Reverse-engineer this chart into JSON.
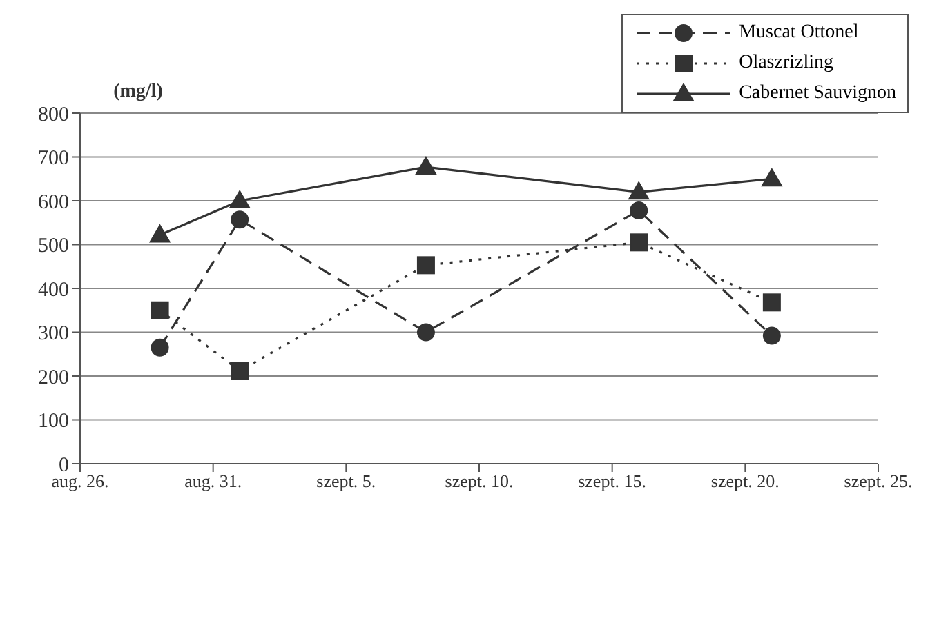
{
  "chart_data": {
    "type": "line",
    "ylabel": "(mg/l)",
    "x": [
      "--08-29",
      "--09-01",
      "--09-08",
      "--09-16",
      "--09-21"
    ],
    "series": [
      {
        "name": "Muscat Ottonel",
        "color": "#333333",
        "marker": "circle",
        "line_style": "dashed",
        "values": [
          265,
          557,
          300,
          578,
          292
        ]
      },
      {
        "name": "Olaszrizling",
        "color": "#333333",
        "marker": "square",
        "line_style": "dotted",
        "values": [
          350,
          212,
          453,
          505,
          368
        ]
      },
      {
        "name": "Cabernet Sauvignon",
        "color": "#333333",
        "marker": "triangle",
        "line_style": "solid",
        "values": [
          522,
          600,
          677,
          620,
          650
        ]
      }
    ],
    "xlim": [
      "--08-26",
      "--09-25"
    ],
    "xticks": [
      {
        "value": "--08-26",
        "label": "aug. 26."
      },
      {
        "value": "--08-31",
        "label": "aug. 31."
      },
      {
        "value": "--09-05",
        "label": "szept. 5."
      },
      {
        "value": "--09-10",
        "label": "szept. 10."
      },
      {
        "value": "--09-15",
        "label": "szept. 15."
      },
      {
        "value": "--09-20",
        "label": "szept. 20."
      },
      {
        "value": "--09-25",
        "label": "szept. 25."
      }
    ],
    "ylim": [
      0,
      800
    ],
    "yticks": [
      0,
      100,
      200,
      300,
      400,
      500,
      600,
      700,
      800
    ],
    "grid": "y",
    "legend": "top right"
  }
}
